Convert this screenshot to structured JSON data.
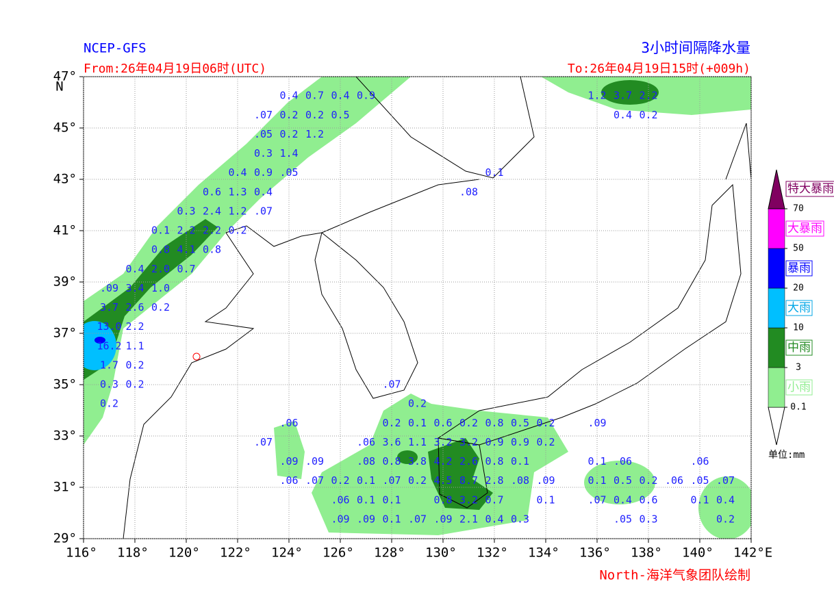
{
  "map": {
    "title_left": "NCEP-GFS",
    "title_right": "3小时间隔降水量",
    "from": "From:26年04月19日06时(UTC)",
    "to": "To:26年04月19日15时(+009h)",
    "credit": "North-海洋气象团队绘制",
    "xlim": [
      116,
      142
    ],
    "ylim": [
      29,
      47
    ],
    "xticks": [
      {
        "value": 116,
        "label": "116°"
      },
      {
        "value": 118,
        "label": "118°"
      },
      {
        "value": 120,
        "label": "120°"
      },
      {
        "value": 122,
        "label": "122°"
      },
      {
        "value": 124,
        "label": "124°"
      },
      {
        "value": 126,
        "label": "126°"
      },
      {
        "value": 128,
        "label": "128°"
      },
      {
        "value": 130,
        "label": "130°"
      },
      {
        "value": 132,
        "label": "132°"
      },
      {
        "value": 134,
        "label": "134°"
      },
      {
        "value": 136,
        "label": "136°"
      },
      {
        "value": 138,
        "label": "138°"
      },
      {
        "value": 140,
        "label": "140°"
      },
      {
        "value": 142,
        "label": "142°E"
      }
    ],
    "yticks": [
      {
        "value": 29,
        "label": "29°"
      },
      {
        "value": 31,
        "label": "31°"
      },
      {
        "value": 33,
        "label": "33°"
      },
      {
        "value": 35,
        "label": "35°"
      },
      {
        "value": 37,
        "label": "37°"
      },
      {
        "value": 39,
        "label": "39°"
      },
      {
        "value": 41,
        "label": "41°"
      },
      {
        "value": 43,
        "label": "43°"
      },
      {
        "value": 45,
        "label": "45°"
      },
      {
        "value": 47,
        "label": "47°"
      }
    ],
    "lat_unit": "N",
    "grid": true,
    "label_color": "#1e1eff",
    "grid_labels": [
      {
        "lat": 46.25,
        "points": [
          [
            124,
            "0.4"
          ],
          [
            125,
            "0.7"
          ],
          [
            126,
            "0.4"
          ],
          [
            127,
            "0.9"
          ],
          [
            136,
            "1.2"
          ],
          [
            137,
            "3.7"
          ],
          [
            138,
            "2.2"
          ]
        ]
      },
      {
        "lat": 45.5,
        "points": [
          [
            123,
            ".07"
          ],
          [
            124,
            "0.2"
          ],
          [
            125,
            "0.2"
          ],
          [
            126,
            "0.5"
          ],
          [
            137,
            "0.4"
          ],
          [
            138,
            "0.2"
          ]
        ]
      },
      {
        "lat": 44.75,
        "points": [
          [
            123,
            ".05"
          ],
          [
            124,
            "0.2"
          ],
          [
            125,
            "1.2"
          ]
        ]
      },
      {
        "lat": 44,
        "points": [
          [
            123,
            "0.3"
          ],
          [
            124,
            "1.4"
          ]
        ]
      },
      {
        "lat": 43.25,
        "points": [
          [
            122,
            "0.4"
          ],
          [
            123,
            "0.9"
          ],
          [
            124,
            ".05"
          ],
          [
            132,
            "0.1"
          ]
        ]
      },
      {
        "lat": 42.5,
        "points": [
          [
            121,
            "0.6"
          ],
          [
            122,
            "1.3"
          ],
          [
            123,
            "0.4"
          ],
          [
            131,
            ".08"
          ]
        ]
      },
      {
        "lat": 41.75,
        "points": [
          [
            120,
            "0.3"
          ],
          [
            121,
            "2.4"
          ],
          [
            122,
            "1.2"
          ],
          [
            123,
            ".07"
          ]
        ]
      },
      {
        "lat": 41,
        "points": [
          [
            119,
            "0.1"
          ],
          [
            120,
            "2.2"
          ],
          [
            121,
            "2.2"
          ],
          [
            122,
            "0.2"
          ]
        ]
      },
      {
        "lat": 40.25,
        "points": [
          [
            119,
            "0.8"
          ],
          [
            120,
            "4.1"
          ],
          [
            121,
            "0.8"
          ]
        ]
      },
      {
        "lat": 39.5,
        "points": [
          [
            118,
            "0.4"
          ],
          [
            119,
            "2.0"
          ],
          [
            120,
            "0.7"
          ]
        ]
      },
      {
        "lat": 38.75,
        "points": [
          [
            117,
            ".09"
          ],
          [
            118,
            "3.4"
          ],
          [
            119,
            "1.0"
          ]
        ]
      },
      {
        "lat": 38,
        "points": [
          [
            117,
            "3.7"
          ],
          [
            118,
            "2.6"
          ],
          [
            119,
            "0.2"
          ]
        ]
      },
      {
        "lat": 37.25,
        "points": [
          [
            117,
            "13.0"
          ],
          [
            118,
            "2.2"
          ]
        ]
      },
      {
        "lat": 36.5,
        "points": [
          [
            117,
            "16.2"
          ],
          [
            118,
            "1.1"
          ]
        ]
      },
      {
        "lat": 35.75,
        "points": [
          [
            117,
            "1.7"
          ],
          [
            118,
            "0.2"
          ]
        ]
      },
      {
        "lat": 35,
        "points": [
          [
            117,
            "0.3"
          ],
          [
            118,
            "0.2"
          ],
          [
            128,
            ".07"
          ]
        ]
      },
      {
        "lat": 34.25,
        "points": [
          [
            117,
            "0.2"
          ],
          [
            129,
            "0.2"
          ]
        ]
      },
      {
        "lat": 33.5,
        "points": [
          [
            124,
            ".06"
          ],
          [
            128,
            "0.2"
          ],
          [
            129,
            "0.1"
          ],
          [
            130,
            "0.6"
          ],
          [
            131,
            "0.2"
          ],
          [
            132,
            "0.8"
          ],
          [
            133,
            "0.5"
          ],
          [
            134,
            "0.2"
          ],
          [
            136,
            ".09"
          ]
        ]
      },
      {
        "lat": 32.75,
        "points": [
          [
            123,
            ".07"
          ],
          [
            127,
            ".06"
          ],
          [
            128,
            "3.6"
          ],
          [
            129,
            "1.1"
          ],
          [
            130,
            "3.2"
          ],
          [
            131,
            "3.2"
          ],
          [
            132,
            "0.9"
          ],
          [
            133,
            "0.9"
          ],
          [
            134,
            "0.2"
          ]
        ]
      },
      {
        "lat": 32,
        "points": [
          [
            124,
            ".09"
          ],
          [
            125,
            ".09"
          ],
          [
            127,
            ".08"
          ],
          [
            128,
            "0.8"
          ],
          [
            129,
            "3.8"
          ],
          [
            130,
            "4.2"
          ],
          [
            131,
            "2.6"
          ],
          [
            132,
            "0.8"
          ],
          [
            133,
            "0.1"
          ],
          [
            136,
            "0.1"
          ],
          [
            137,
            ".06"
          ],
          [
            140,
            ".06"
          ]
        ]
      },
      {
        "lat": 31.25,
        "points": [
          [
            124,
            ".06"
          ],
          [
            125,
            ".07"
          ],
          [
            126,
            "0.2"
          ],
          [
            127,
            "0.1"
          ],
          [
            128,
            ".07"
          ],
          [
            129,
            "0.2"
          ],
          [
            130,
            "4.5"
          ],
          [
            131,
            "8.7"
          ],
          [
            132,
            "2.8"
          ],
          [
            133,
            ".08"
          ],
          [
            134,
            ".09"
          ],
          [
            136,
            "0.1"
          ],
          [
            137,
            "0.5"
          ],
          [
            138,
            "0.2"
          ],
          [
            139,
            ".06"
          ],
          [
            140,
            ".05"
          ],
          [
            141,
            ".07"
          ]
        ]
      },
      {
        "lat": 30.5,
        "points": [
          [
            126,
            ".06"
          ],
          [
            127,
            "0.1"
          ],
          [
            128,
            "0.1"
          ],
          [
            130,
            "0.8"
          ],
          [
            131,
            "3.2"
          ],
          [
            132,
            "0.7"
          ],
          [
            134,
            "0.1"
          ],
          [
            136,
            ".07"
          ],
          [
            137,
            "0.4"
          ],
          [
            138,
            "0.6"
          ],
          [
            140,
            "0.1"
          ],
          [
            141,
            "0.4"
          ]
        ]
      },
      {
        "lat": 29.75,
        "points": [
          [
            126,
            ".09"
          ],
          [
            127,
            ".09"
          ],
          [
            128,
            "0.1"
          ],
          [
            129,
            ".07"
          ],
          [
            130,
            ".09"
          ],
          [
            131,
            "2.1"
          ],
          [
            132,
            "0.4"
          ],
          [
            133,
            "0.3"
          ],
          [
            137,
            ".05"
          ],
          [
            138,
            "0.3"
          ],
          [
            141,
            "0.2"
          ]
        ]
      }
    ],
    "legend": {
      "levels": [
        0.1,
        3,
        10,
        20,
        50,
        70
      ],
      "categories": [
        {
          "name": "小雨",
          "color": "#90ee90",
          "text_color": "#90ee90"
        },
        {
          "name": "中雨",
          "color": "#228b22",
          "text_color": "#228b22"
        },
        {
          "name": "大雨",
          "color": "#00bfff",
          "text_color": "#00a6e6"
        },
        {
          "name": "暴雨",
          "color": "#0000ff",
          "text_color": "#0000ff"
        },
        {
          "name": "大暴雨",
          "color": "#ff00ff",
          "text_color": "#ff00ff"
        },
        {
          "name": "特大暴雨",
          "color": "#800060",
          "text_color": "#800060"
        }
      ],
      "unit": "单位:mm"
    }
  }
}
